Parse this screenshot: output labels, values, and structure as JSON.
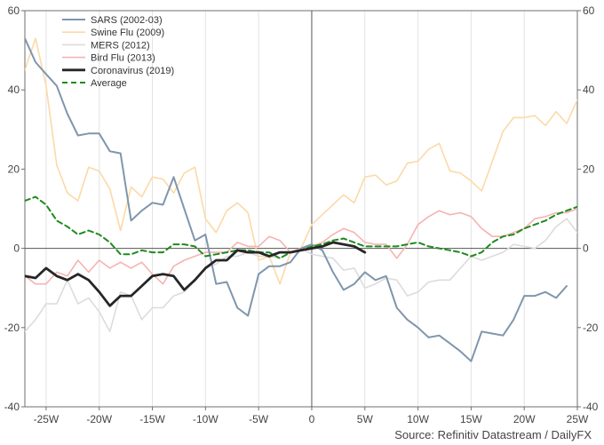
{
  "chart_data": {
    "type": "line",
    "title": "",
    "xlabel": "",
    "ylabel": "",
    "xlim": [
      -27,
      25
    ],
    "ylim": [
      -40,
      60
    ],
    "x_ticks": [
      -25,
      -20,
      -15,
      -10,
      -5,
      0,
      5,
      10,
      15,
      20,
      25
    ],
    "x_tick_labels": [
      "-25W",
      "-20W",
      "-15W",
      "-10W",
      "-5W",
      "0",
      "5W",
      "10W",
      "15W",
      "20W",
      "25W"
    ],
    "y_ticks": [
      -40,
      -20,
      0,
      20,
      40,
      60
    ],
    "y_tick_labels": [
      "-40",
      "-20",
      "0",
      "20",
      "40",
      "60"
    ],
    "grid": "vertical",
    "legend_position": "top-left",
    "source_note": "Source: Refinitiv Datastream / DailyFX",
    "series": [
      {
        "name": "SARS (2002-03)",
        "color": "#7f96ad",
        "width": 2,
        "dash": "solid",
        "x": [
          -27,
          -26,
          -25,
          -24,
          -23,
          -22,
          -21,
          -20,
          -19,
          -18,
          -17,
          -16,
          -15,
          -14,
          -13,
          -12,
          -11,
          -10,
          -9,
          -8,
          -7,
          -6,
          -5,
          -4,
          -3,
          -2,
          -1,
          0,
          1,
          2,
          3,
          4,
          5,
          6,
          7,
          8,
          9,
          10,
          11,
          12,
          13,
          14,
          15,
          16,
          17,
          18,
          19,
          20,
          21,
          22,
          23,
          24,
          25
        ],
        "y": [
          53,
          47,
          44,
          41,
          34,
          28.5,
          29,
          29,
          24.5,
          24,
          7,
          9.5,
          11.5,
          11,
          18,
          10,
          2,
          3.5,
          -9,
          -8.5,
          -15,
          -17,
          -6.5,
          -4.5,
          -4.5,
          -3.5,
          0,
          1,
          -0.5,
          -6,
          -10.5,
          -9,
          -6,
          -8,
          -7,
          -15,
          -18,
          -20,
          -22.5,
          -22,
          -24,
          -26,
          -28.5,
          -21,
          -21.5,
          -22,
          -18,
          -12,
          -12,
          -11,
          -12.5,
          -9.5,
          null
        ]
      },
      {
        "name": "Swine Flu (2009)",
        "color": "#fcd9a8",
        "width": 1.6,
        "dash": "solid",
        "x": [
          -27,
          -26,
          -25,
          -24,
          -23,
          -22,
          -21,
          -20,
          -19,
          -18,
          -17,
          -16,
          -15,
          -14,
          -13,
          -12,
          -11,
          -10,
          -9,
          -8,
          -7,
          -6,
          -5,
          -4,
          -3,
          -2,
          -1,
          0,
          1,
          2,
          3,
          4,
          5,
          6,
          7,
          8,
          9,
          10,
          11,
          12,
          13,
          14,
          15,
          16,
          17,
          18,
          19,
          20,
          21,
          22,
          23,
          24,
          25
        ],
        "y": [
          45,
          53,
          41,
          21,
          14,
          12,
          20.5,
          19.5,
          15,
          4.5,
          15.5,
          13,
          18,
          17.5,
          14,
          19,
          20.5,
          7.5,
          4,
          9.5,
          11.5,
          9,
          -3,
          -2,
          -9,
          -1,
          0,
          6,
          8.5,
          11,
          13.5,
          11.5,
          18,
          18.5,
          16,
          17,
          21.5,
          22,
          25,
          26.5,
          19.5,
          19,
          17,
          14.5,
          22,
          29.5,
          33,
          33,
          33.5,
          31,
          34.5,
          31.5,
          37.5
        ]
      },
      {
        "name": "MERS (2012)",
        "color": "#dcdcdc",
        "width": 1.6,
        "dash": "solid",
        "x": [
          -27,
          -26,
          -25,
          -24,
          -23,
          -22,
          -21,
          -20,
          -19,
          -18,
          -17,
          -16,
          -15,
          -14,
          -13,
          -12,
          -11,
          -10,
          -9,
          -8,
          -7,
          -6,
          -5,
          -4,
          -3,
          -2,
          -1,
          0,
          1,
          2,
          3,
          4,
          5,
          6,
          7,
          8,
          9,
          10,
          11,
          12,
          13,
          14,
          15,
          16,
          17,
          18,
          19,
          20,
          21,
          22,
          23,
          24,
          25
        ],
        "y": [
          -21,
          -18,
          -14,
          -14,
          -8,
          -14,
          -12.5,
          -16,
          -21,
          -11,
          -12,
          -18,
          -15,
          -15,
          -12,
          -11,
          -8,
          -5,
          -4,
          -2,
          -2,
          -1,
          -2,
          -2,
          -2.5,
          -1,
          0,
          -1.5,
          -2,
          -2.5,
          -5.5,
          -5,
          -10,
          -9,
          -7.5,
          -8,
          -12,
          -11,
          -8.5,
          -8,
          -8,
          -5,
          -2,
          -3,
          -2,
          -1,
          1,
          0.5,
          0,
          2,
          5.5,
          7.5,
          4
        ]
      },
      {
        "name": "Bird Flu (2013)",
        "color": "#f6b3b3",
        "width": 1.6,
        "dash": "solid",
        "x": [
          -27,
          -26,
          -25,
          -24,
          -23,
          -22,
          -21,
          -20,
          -19,
          -18,
          -17,
          -16,
          -15,
          -14,
          -13,
          -12,
          -11,
          -10,
          -9,
          -8,
          -7,
          -6,
          -5,
          -4,
          -3,
          -2,
          -1,
          0,
          1,
          2,
          3,
          4,
          5,
          6,
          7,
          8,
          9,
          10,
          11,
          12,
          13,
          14,
          15,
          16,
          17,
          18,
          19,
          20,
          21,
          22,
          23,
          24,
          25
        ],
        "y": [
          -7,
          -9,
          -9,
          -6,
          -7,
          -3,
          -6,
          -3,
          -5,
          -3.5,
          -5,
          -3.5,
          -6.5,
          -9,
          -4.5,
          -3,
          -2,
          -1,
          -1,
          -1,
          1.5,
          0.5,
          0.5,
          3,
          2,
          -1,
          0,
          0.5,
          1.5,
          3.5,
          5,
          4,
          1.5,
          1,
          1,
          -2.5,
          1,
          6,
          8,
          9.5,
          8.5,
          9,
          8,
          5,
          3,
          3,
          4,
          5,
          7.5,
          8,
          9,
          9,
          10
        ]
      },
      {
        "name": "Coronavirus (2019)",
        "color": "#262626",
        "width": 2.8,
        "dash": "solid",
        "x": [
          -27,
          -26,
          -25,
          -24,
          -23,
          -22,
          -21,
          -20,
          -19,
          -18,
          -17,
          -16,
          -15,
          -14,
          -13,
          -12,
          -11,
          -10,
          -9,
          -8,
          -7,
          -6,
          -5,
          -4,
          -3,
          -2,
          -1,
          0,
          1,
          2,
          3,
          4,
          5
        ],
        "y": [
          -7,
          -7.5,
          -5,
          -7,
          -8,
          -6.5,
          -8,
          -11,
          -14.5,
          -12,
          -12,
          -9.5,
          -7,
          -6.5,
          -7,
          -10.5,
          -8,
          -5,
          -3,
          -3,
          -0.5,
          -1,
          -1,
          -2,
          -1,
          -1,
          -0.5,
          0,
          0.5,
          1.5,
          1,
          0.5,
          -1
        ]
      },
      {
        "name": "Average",
        "color": "#1f8a1f",
        "width": 2,
        "dash": "dashed",
        "x": [
          -27,
          -26,
          -25,
          -24,
          -23,
          -22,
          -21,
          -20,
          -19,
          -18,
          -17,
          -16,
          -15,
          -14,
          -13,
          -12,
          -11,
          -10,
          -9,
          -8,
          -7,
          -6,
          -5,
          -4,
          -3,
          -2,
          -1,
          0,
          1,
          2,
          3,
          4,
          5,
          6,
          7,
          8,
          9,
          10,
          11,
          12,
          13,
          14,
          15,
          16,
          17,
          18,
          19,
          20,
          21,
          22,
          23,
          24,
          25
        ],
        "y": [
          12,
          13,
          11,
          7,
          5.5,
          3.5,
          4.5,
          3.5,
          1.5,
          -1.5,
          -1.5,
          -0.5,
          -1,
          -1,
          1,
          1,
          0.5,
          -2,
          -1.5,
          -1,
          -0.5,
          -0.5,
          -1,
          -1,
          -2.5,
          -1,
          -0.5,
          0.5,
          1,
          2,
          2.5,
          1.5,
          0.5,
          0.5,
          0.5,
          0.5,
          1,
          1.5,
          0.5,
          0,
          -0.5,
          -1,
          -2,
          -1,
          1.5,
          3,
          3.5,
          5,
          6,
          7,
          8.5,
          9.5,
          10.5
        ]
      }
    ]
  }
}
